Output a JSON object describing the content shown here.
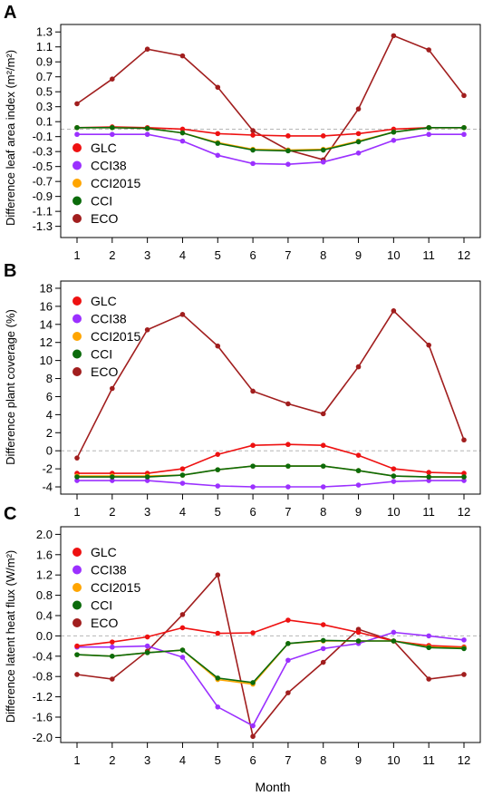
{
  "figure": {
    "xlabel_bottom": "Month"
  },
  "legend_entries": [
    {
      "name": "GLC",
      "color": "#ee1111"
    },
    {
      "name": "CCI38",
      "color": "#9b30ff"
    },
    {
      "name": "CCI2015",
      "color": "#ffa500"
    },
    {
      "name": "CCI",
      "color": "#0b6b0b"
    },
    {
      "name": "ECO",
      "color": "#a11e1e"
    }
  ],
  "chart_data": [
    {
      "panel_label": "A",
      "type": "line",
      "xlabel": "",
      "ylabel": "Difference leaf area index (m²/m²)",
      "x": [
        1,
        2,
        3,
        4,
        5,
        6,
        7,
        8,
        9,
        10,
        11,
        12
      ],
      "ylim": [
        -1.45,
        1.4
      ],
      "yticks": [
        -1.3,
        -1.1,
        -0.9,
        -0.7,
        -0.5,
        -0.3,
        -0.1,
        0.1,
        0.3,
        0.5,
        0.7,
        0.9,
        1.1,
        1.3
      ],
      "ytick_labels": [
        "-1.3",
        "-1.1",
        "-0.9",
        "-0.7",
        "-0.5",
        "-0.3",
        "-0.1",
        "0.1",
        "0.3",
        "0.5",
        "0.7",
        "0.9",
        "1.1",
        "1.3"
      ],
      "zero_line": true,
      "legend_position": "bottom-left",
      "series": [
        {
          "name": "GLC",
          "values": [
            0.02,
            0.03,
            0.02,
            0.0,
            -0.06,
            -0.08,
            -0.09,
            -0.09,
            -0.06,
            0.0,
            0.02,
            0.02
          ]
        },
        {
          "name": "CCI38",
          "values": [
            -0.07,
            -0.07,
            -0.07,
            -0.16,
            -0.35,
            -0.46,
            -0.47,
            -0.44,
            -0.32,
            -0.15,
            -0.07,
            -0.07
          ]
        },
        {
          "name": "CCI2015",
          "values": [
            0.02,
            0.02,
            0.01,
            -0.05,
            -0.18,
            -0.27,
            -0.28,
            -0.27,
            -0.16,
            -0.04,
            0.02,
            0.02
          ]
        },
        {
          "name": "CCI",
          "values": [
            0.02,
            0.02,
            0.01,
            -0.05,
            -0.19,
            -0.28,
            -0.29,
            -0.28,
            -0.17,
            -0.04,
            0.02,
            0.02
          ]
        },
        {
          "name": "ECO",
          "values": [
            0.34,
            0.67,
            1.07,
            0.98,
            0.56,
            -0.02,
            -0.28,
            -0.41,
            0.27,
            1.25,
            1.06,
            0.45
          ]
        }
      ]
    },
    {
      "panel_label": "B",
      "type": "line",
      "xlabel": "",
      "ylabel": "Difference plant coverage (%)",
      "x": [
        1,
        2,
        3,
        4,
        5,
        6,
        7,
        8,
        9,
        10,
        11,
        12
      ],
      "ylim": [
        -4.8,
        18.8
      ],
      "yticks": [
        -4,
        -2,
        0,
        2,
        4,
        6,
        8,
        10,
        12,
        14,
        16,
        18
      ],
      "ytick_labels": [
        "-4",
        "-2",
        "0",
        "2",
        "4",
        "6",
        "8",
        "10",
        "12",
        "14",
        "16",
        "18"
      ],
      "zero_line": true,
      "legend_position": "top-left",
      "series": [
        {
          "name": "GLC",
          "values": [
            -2.5,
            -2.5,
            -2.5,
            -2.0,
            -0.4,
            0.6,
            0.7,
            0.6,
            -0.5,
            -2.0,
            -2.4,
            -2.5
          ]
        },
        {
          "name": "CCI38",
          "values": [
            -3.3,
            -3.3,
            -3.3,
            -3.6,
            -3.9,
            -4.0,
            -4.0,
            -4.0,
            -3.8,
            -3.4,
            -3.3,
            -3.3
          ]
        },
        {
          "name": "CCI2015",
          "values": [
            -2.8,
            -2.8,
            -2.8,
            -2.7,
            -2.1,
            -1.7,
            -1.7,
            -1.7,
            -2.2,
            -2.8,
            -2.9,
            -2.9
          ]
        },
        {
          "name": "CCI",
          "values": [
            -2.9,
            -2.9,
            -2.9,
            -2.7,
            -2.1,
            -1.7,
            -1.7,
            -1.7,
            -2.2,
            -2.8,
            -2.9,
            -2.9
          ]
        },
        {
          "name": "ECO",
          "values": [
            -0.8,
            6.9,
            13.4,
            15.1,
            11.6,
            6.6,
            5.2,
            4.1,
            9.3,
            15.5,
            11.7,
            1.2
          ]
        }
      ]
    },
    {
      "panel_label": "C",
      "type": "line",
      "xlabel": "Month",
      "ylabel": "Difference latent heat flux (W/m²)",
      "x": [
        1,
        2,
        3,
        4,
        5,
        6,
        7,
        8,
        9,
        10,
        11,
        12
      ],
      "ylim": [
        -2.1,
        2.15
      ],
      "yticks": [
        -2.0,
        -1.6,
        -1.2,
        -0.8,
        -0.4,
        0.0,
        0.4,
        0.8,
        1.2,
        1.6,
        2.0
      ],
      "ytick_labels": [
        "-2.0",
        "-1.6",
        "-1.2",
        "-0.8",
        "-0.4",
        "0.0",
        "0.4",
        "0.8",
        "1.2",
        "1.6",
        "2.0"
      ],
      "zero_line": true,
      "legend_position": "top-left",
      "series": [
        {
          "name": "GLC",
          "values": [
            -0.2,
            -0.12,
            -0.02,
            0.16,
            0.05,
            0.06,
            0.31,
            0.22,
            0.07,
            -0.1,
            -0.19,
            -0.22
          ]
        },
        {
          "name": "CCI38",
          "values": [
            -0.22,
            -0.22,
            -0.2,
            -0.42,
            -1.4,
            -1.77,
            -0.48,
            -0.25,
            -0.15,
            0.07,
            0.0,
            -0.08
          ]
        },
        {
          "name": "CCI2015",
          "values": [
            -0.37,
            -0.4,
            -0.33,
            -0.28,
            -0.86,
            -0.95,
            -0.15,
            -0.1,
            -0.1,
            -0.1,
            -0.22,
            -0.24
          ]
        },
        {
          "name": "CCI",
          "values": [
            -0.37,
            -0.4,
            -0.33,
            -0.28,
            -0.83,
            -0.92,
            -0.15,
            -0.09,
            -0.1,
            -0.1,
            -0.23,
            -0.25
          ]
        },
        {
          "name": "ECO",
          "values": [
            -0.76,
            -0.85,
            -0.3,
            0.42,
            1.2,
            -1.98,
            -1.12,
            -0.52,
            0.13,
            -0.1,
            -0.85,
            -0.76
          ]
        }
      ]
    }
  ]
}
